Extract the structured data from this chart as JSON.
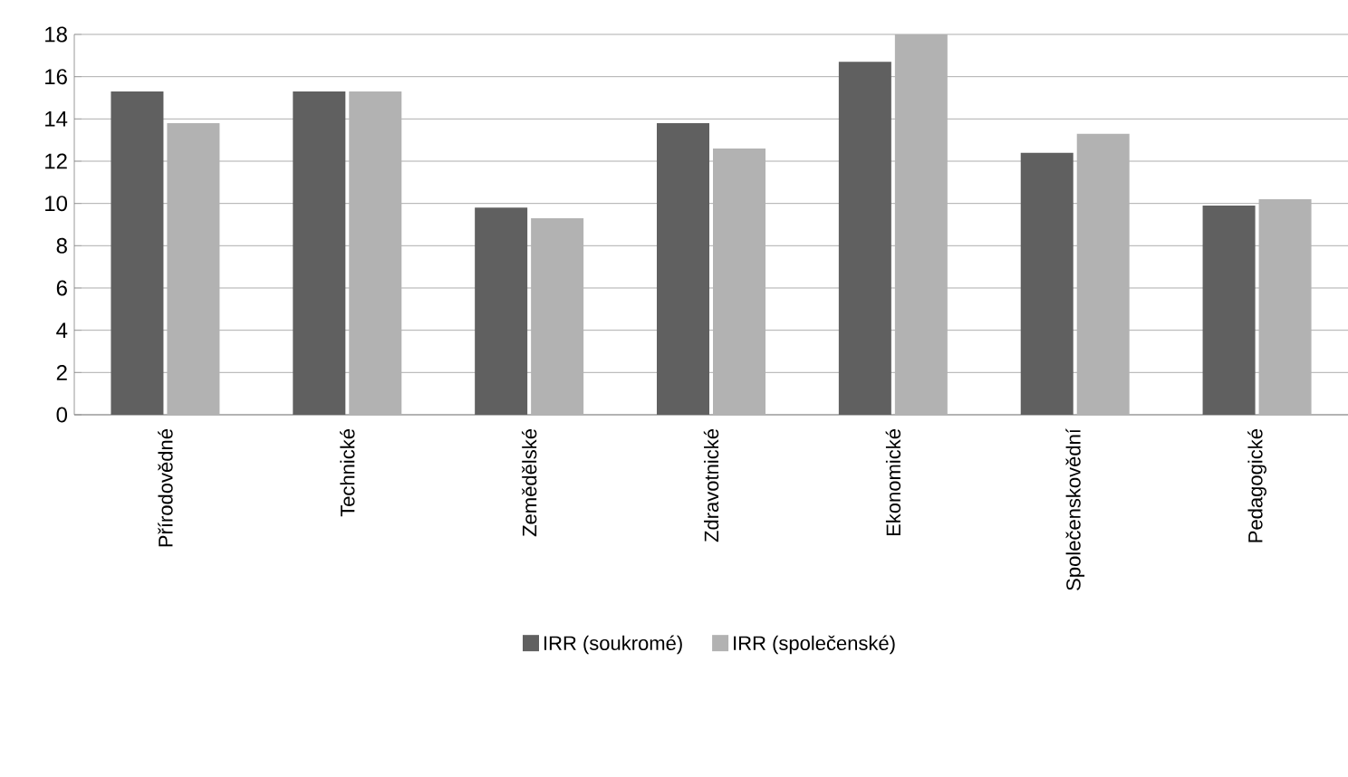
{
  "chart_data": {
    "type": "bar",
    "categories": [
      "Přírodovědné",
      "Technické",
      "Zemědělské",
      "Zdravotnické",
      "Ekonomické",
      "Společenskovědní",
      "Pedagogické"
    ],
    "series": [
      {
        "name": "IRR (soukromé)",
        "color": "#606060",
        "values": [
          15.3,
          15.3,
          9.8,
          13.8,
          16.7,
          12.4,
          9.9
        ]
      },
      {
        "name": "IRR (společenské)",
        "color": "#b2b2b2",
        "values": [
          13.8,
          15.3,
          9.3,
          12.6,
          18.0,
          13.3,
          10.2
        ]
      }
    ],
    "ylim": [
      0,
      18
    ],
    "yticks": [
      0,
      2,
      4,
      6,
      8,
      10,
      12,
      14,
      16,
      18
    ],
    "grid": "y",
    "legend": "bottom"
  }
}
